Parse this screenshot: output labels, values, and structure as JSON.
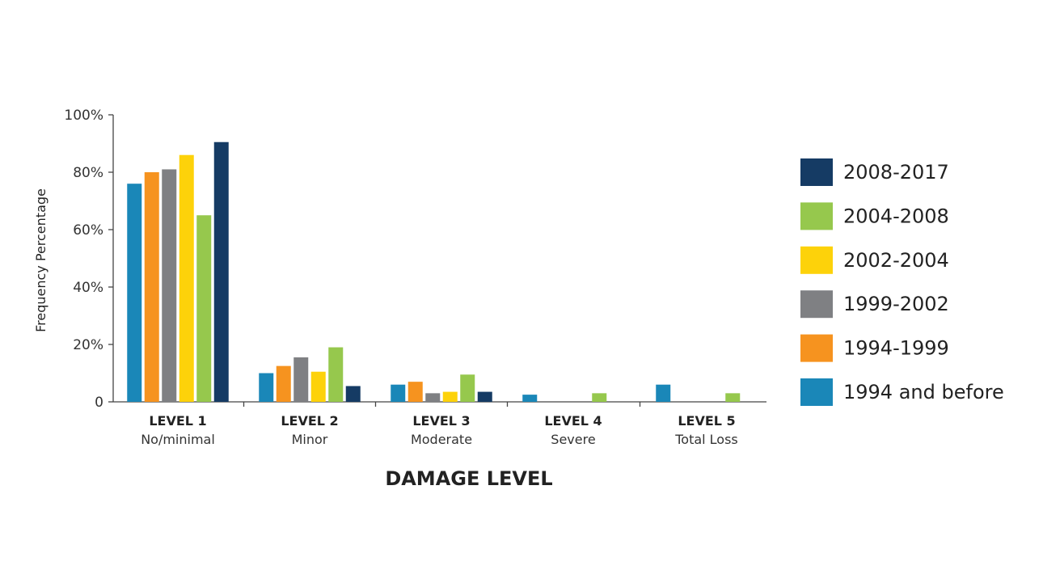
{
  "chart_data": {
    "type": "bar",
    "categories": [
      "LEVEL 1",
      "LEVEL 2",
      "LEVEL 3",
      "LEVEL 4",
      "LEVEL 5"
    ],
    "category_sublabels": [
      "No/minimal",
      "Minor",
      "Moderate",
      "Severe",
      "Total Loss"
    ],
    "series": [
      {
        "name": "1994 and before",
        "color": "#1a87b8",
        "values": [
          76,
          10,
          6,
          2.5,
          6
        ]
      },
      {
        "name": "1994-1999",
        "color": "#f6931f",
        "values": [
          80,
          12.5,
          7,
          0,
          0
        ]
      },
      {
        "name": "1999-2002",
        "color": "#7f8083",
        "values": [
          81,
          15.5,
          3,
          0,
          0
        ]
      },
      {
        "name": "2002-2004",
        "color": "#fdd20a",
        "values": [
          86,
          10.5,
          3.5,
          0,
          0
        ]
      },
      {
        "name": "2004-2008",
        "color": "#96c84d",
        "values": [
          65,
          19,
          9.5,
          3,
          3
        ]
      },
      {
        "name": "2008-2017",
        "color": "#153b64",
        "values": [
          90.5,
          5.5,
          3.5,
          0,
          0
        ]
      }
    ],
    "legend_order": [
      "2008-2017",
      "2004-2008",
      "2002-2004",
      "1999-2002",
      "1994-1999",
      "1994 and before"
    ],
    "legend_position": "right",
    "xlabel": "DAMAGE LEVEL",
    "ylabel": "Frequency Percentage",
    "ylim": [
      0,
      100
    ],
    "yticks": [
      0,
      20,
      40,
      60,
      80,
      100
    ],
    "ytick_labels": [
      "0",
      "20%",
      "40%",
      "60%",
      "80%",
      "100%"
    ],
    "grid": false
  }
}
